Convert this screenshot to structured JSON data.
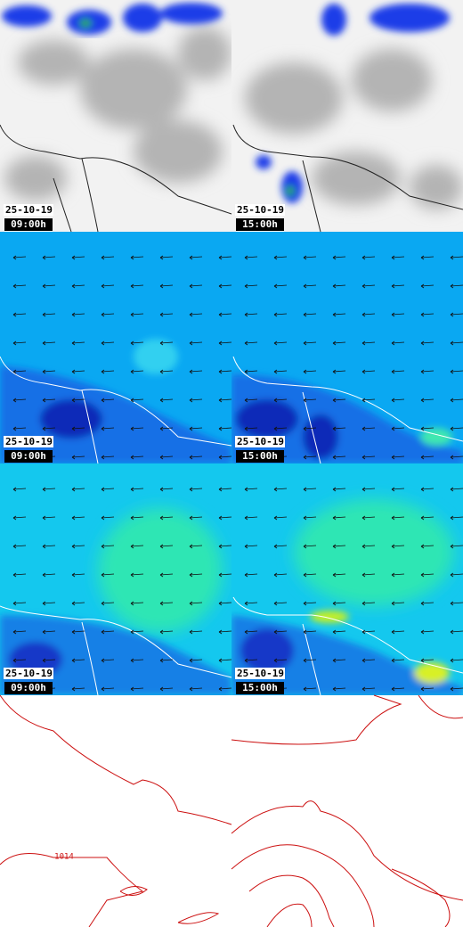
{
  "panels": [
    {
      "date": "25-10-19",
      "time": "09:00h"
    },
    {
      "date": "25-10-19",
      "time": "15:00h"
    },
    {
      "date": "25-10-19",
      "time": "09:00h"
    },
    {
      "date": "25-10-19",
      "time": "15:00h"
    },
    {
      "date": "25-10-19",
      "time": "09:00h"
    },
    {
      "date": "25-10-19",
      "time": "15:00h"
    }
  ],
  "contour_label": "1014"
}
